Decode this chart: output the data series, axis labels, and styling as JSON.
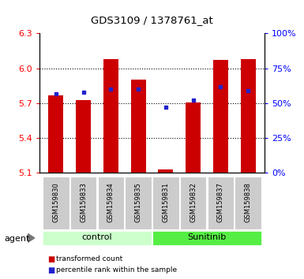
{
  "title": "GDS3109 / 1378761_at",
  "samples": [
    "GSM159830",
    "GSM159833",
    "GSM159834",
    "GSM159835",
    "GSM159831",
    "GSM159832",
    "GSM159837",
    "GSM159838"
  ],
  "groups": [
    "control",
    "control",
    "control",
    "control",
    "Sunitinib",
    "Sunitinib",
    "Sunitinib",
    "Sunitinib"
  ],
  "red_values": [
    5.77,
    5.73,
    6.08,
    5.9,
    5.13,
    5.71,
    6.07,
    6.08
  ],
  "blue_values": [
    57,
    58,
    60,
    60,
    47,
    52,
    62,
    59
  ],
  "y_min": 5.1,
  "y_max": 6.3,
  "y_ticks_left": [
    5.1,
    5.4,
    5.7,
    6.0,
    6.3
  ],
  "y_ticks_right": [
    0,
    25,
    50,
    75,
    100
  ],
  "control_color_light": "#ccffcc",
  "sunitinib_color": "#55ee44",
  "bar_color": "#cc0000",
  "blue_marker_color": "#2222cc",
  "plot_bg": "#ffffff",
  "legend_red": "transformed count",
  "legend_blue": "percentile rank within the sample",
  "tick_label_bg": "#cccccc",
  "bar_width": 0.55
}
